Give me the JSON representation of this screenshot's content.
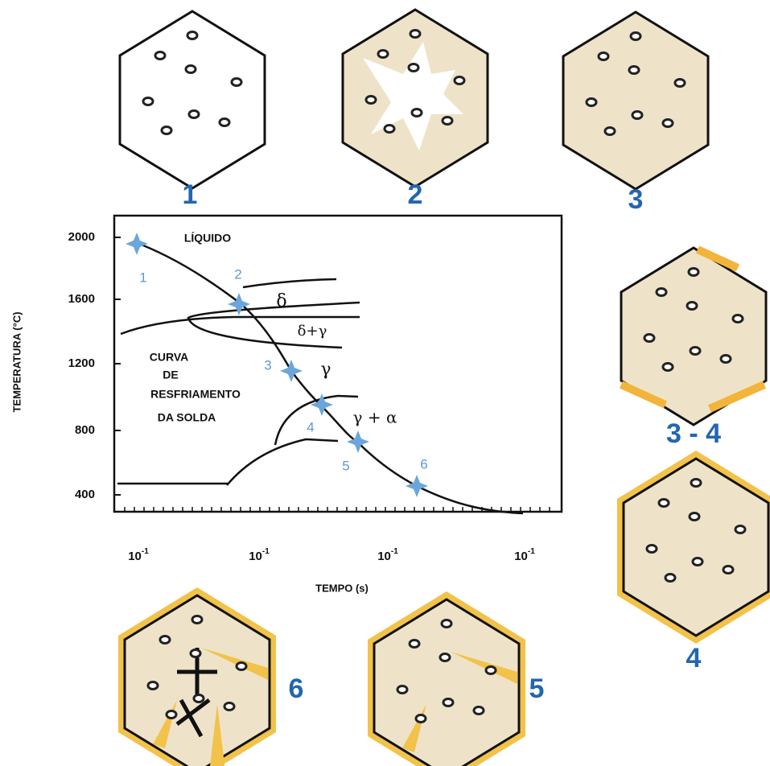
{
  "hexagons": [
    {
      "label": "1"
    },
    {
      "label": "2"
    },
    {
      "label": "3"
    },
    {
      "label": "3 - 4"
    },
    {
      "label": "4"
    },
    {
      "label": "5"
    },
    {
      "label": "6"
    }
  ],
  "plot": {
    "y_axis_label": "TEMPERATURA (°C)",
    "x_axis_label": "TEMPO (s)",
    "yticks": [
      "2000",
      "1600",
      "1200",
      "800",
      "400"
    ],
    "xticks": [
      {
        "base": "10",
        "exponent": "-1"
      },
      {
        "base": "10",
        "exponent": "-1"
      },
      {
        "base": "10",
        "exponent": "-1"
      },
      {
        "base": "10",
        "exponent": "-1"
      }
    ],
    "regions": {
      "liquid": "LÍQUIDO",
      "delta": "δ",
      "delta_gamma": "δ+γ",
      "gamma": "γ",
      "gamma_alpha": "γ + α"
    },
    "curve_label": [
      "CURVA",
      "DE",
      "RESFRIAMENTO",
      "DA SOLDA"
    ],
    "points": [
      "1",
      "2",
      "3",
      "4",
      "5",
      "6"
    ]
  }
}
